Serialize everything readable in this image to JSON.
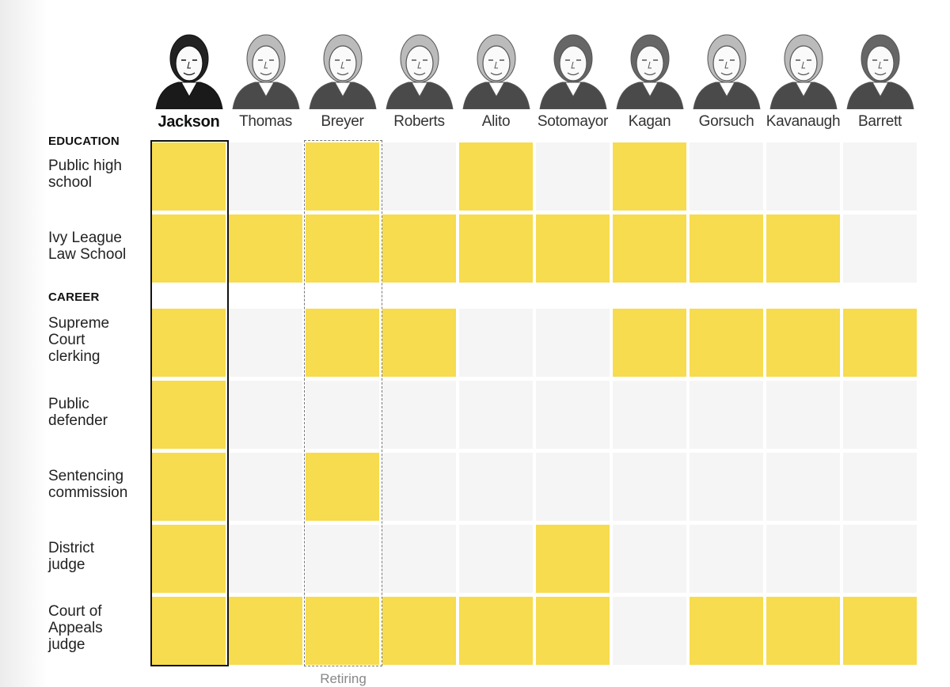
{
  "chart_data": {
    "type": "table",
    "columns": [
      "Jackson",
      "Thomas",
      "Breyer",
      "Roberts",
      "Alito",
      "Sotomayor",
      "Kagan",
      "Gorsuch",
      "Kavanaugh",
      "Barrett"
    ],
    "highlight_column": "Jackson",
    "annotated_column": "Breyer",
    "annotation": "Retiring",
    "sections": [
      {
        "title": "EDUCATION",
        "rows": [
          {
            "label": "Public high\nschool",
            "values": [
              1,
              0,
              1,
              0,
              1,
              0,
              1,
              0,
              0,
              0
            ]
          },
          {
            "label": "Ivy League\nLaw School",
            "values": [
              1,
              1,
              1,
              1,
              1,
              1,
              1,
              1,
              1,
              0
            ]
          }
        ]
      },
      {
        "title": "CAREER",
        "rows": [
          {
            "label": "Supreme\nCourt\nclerking",
            "values": [
              1,
              0,
              1,
              1,
              0,
              0,
              1,
              1,
              1,
              1
            ]
          },
          {
            "label": "Public\ndefender",
            "values": [
              1,
              0,
              0,
              0,
              0,
              0,
              0,
              0,
              0,
              0
            ]
          },
          {
            "label": "Sentencing\ncommission",
            "values": [
              1,
              0,
              1,
              0,
              0,
              0,
              0,
              0,
              0,
              0
            ]
          },
          {
            "label": "District\njudge",
            "values": [
              1,
              0,
              0,
              0,
              0,
              1,
              0,
              0,
              0,
              0
            ]
          },
          {
            "label": "Court of\nAppeals\njudge",
            "values": [
              1,
              1,
              1,
              1,
              1,
              1,
              0,
              1,
              1,
              1
            ]
          }
        ]
      }
    ],
    "colors": {
      "yes": "#f6dc4e",
      "no": "#f5f5f5",
      "highlight_border": "#111111",
      "annotation_border": "#777777"
    }
  }
}
